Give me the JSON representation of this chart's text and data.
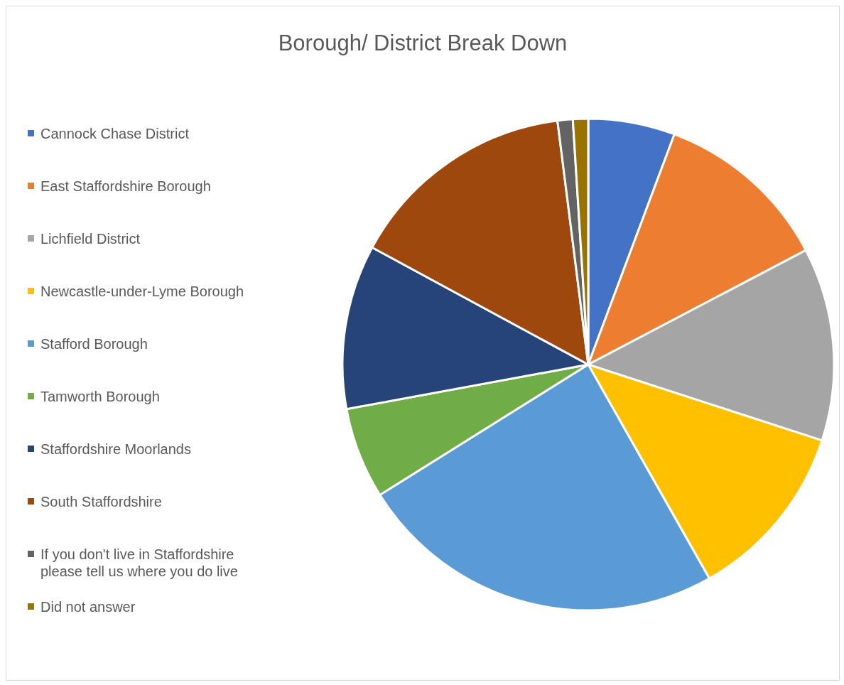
{
  "chart_data": {
    "type": "pie",
    "title": "Borough/ District Break Down",
    "categories": [
      "Cannock Chase District",
      "East Staffordshire Borough",
      "Lichfield District",
      "Newcastle-under-Lyme Borough",
      "Stafford Borough",
      "Tamworth Borough",
      "Staffordshire Moorlands",
      "South Staffordshire",
      "If you don't live in Staffordshire please tell us where you do live",
      "Did not answer"
    ],
    "values": [
      5.7,
      11.6,
      12.7,
      11.8,
      24.3,
      6.0,
      10.8,
      15.1,
      1.0,
      1.0
    ],
    "colors": [
      "#4472c4",
      "#ed7d31",
      "#a5a5a5",
      "#ffc000",
      "#5b9bd5",
      "#70ad47",
      "#264478",
      "#9e480e",
      "#636363",
      "#997300"
    ],
    "legend": "left"
  }
}
